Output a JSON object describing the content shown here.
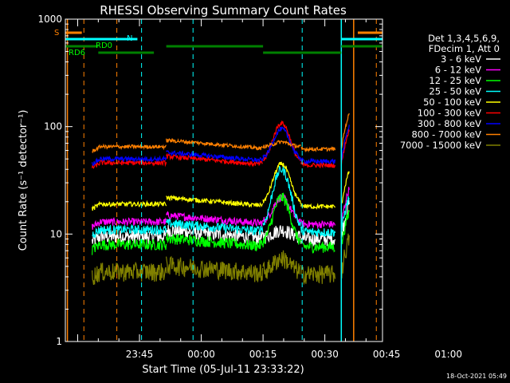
{
  "chart_data": {
    "type": "line",
    "title": "RHESSI Observing Summary Count Rates",
    "xlabel": "Start Time (05-Jul-11 23:33:22)",
    "ylabel": "Count Rate (s⁻¹ detector⁻¹)",
    "yscale": "log",
    "ylim": [
      1,
      1000
    ],
    "xlim_min": [
      -6,
      71
    ],
    "ytick_labels": [
      {
        "v": 1,
        "label": "1"
      },
      {
        "v": 10,
        "label": "10"
      },
      {
        "v": 100,
        "label": "100"
      },
      {
        "v": 1000,
        "label": "1000"
      }
    ],
    "xtick_labels": [
      {
        "m": 12,
        "label": "23:45"
      },
      {
        "m": 27,
        "label": "00:00"
      },
      {
        "m": 42,
        "label": "00:15"
      },
      {
        "m": 57,
        "label": "00:30"
      },
      {
        "m": 72,
        "label": "00:45"
      },
      {
        "m": 87,
        "label": "01:00"
      }
    ],
    "legend_header": [
      "Det 1,3,4,5,6,9,",
      "FDecim 1, Att 0"
    ],
    "series": [
      {
        "name": "3 - 6 keV",
        "color": "#ffffff",
        "base": 9.5,
        "peak": 11,
        "noise": 0.15
      },
      {
        "name": "6 - 12 keV",
        "color": "#ff00ff",
        "base": 13,
        "peak": 22,
        "noise": 0.08
      },
      {
        "name": "12 - 25 keV",
        "color": "#00ff00",
        "base": 8,
        "peak": 22,
        "noise": 0.12
      },
      {
        "name": "25 - 50 keV",
        "color": "#00ffff",
        "base": 11,
        "peak": 40,
        "noise": 0.1
      },
      {
        "name": "50 - 100 keV",
        "color": "#ffff00",
        "base": 19,
        "peak": 45,
        "noise": 0.05
      },
      {
        "name": "100 - 300 keV",
        "color": "#ff0000",
        "base": 46,
        "peak": 108,
        "noise": 0.05
      },
      {
        "name": "300 - 800 keV",
        "color": "#0000ff",
        "base": 50,
        "peak": 95,
        "noise": 0.05
      },
      {
        "name": "800 - 7000 keV",
        "color": "#ff8000",
        "base": 65,
        "peak": 72,
        "noise": 0.04
      },
      {
        "name": "7000 - 15000 keV",
        "color": "#808000",
        "base": 4.5,
        "peak": 6,
        "noise": 0.2
      }
    ],
    "annotations": {
      "s_label": "S",
      "n_label": "N",
      "rd0_label": "RD0",
      "rd6_label": "RD6"
    },
    "footer_date": "18-Oct-2021 05:49"
  }
}
